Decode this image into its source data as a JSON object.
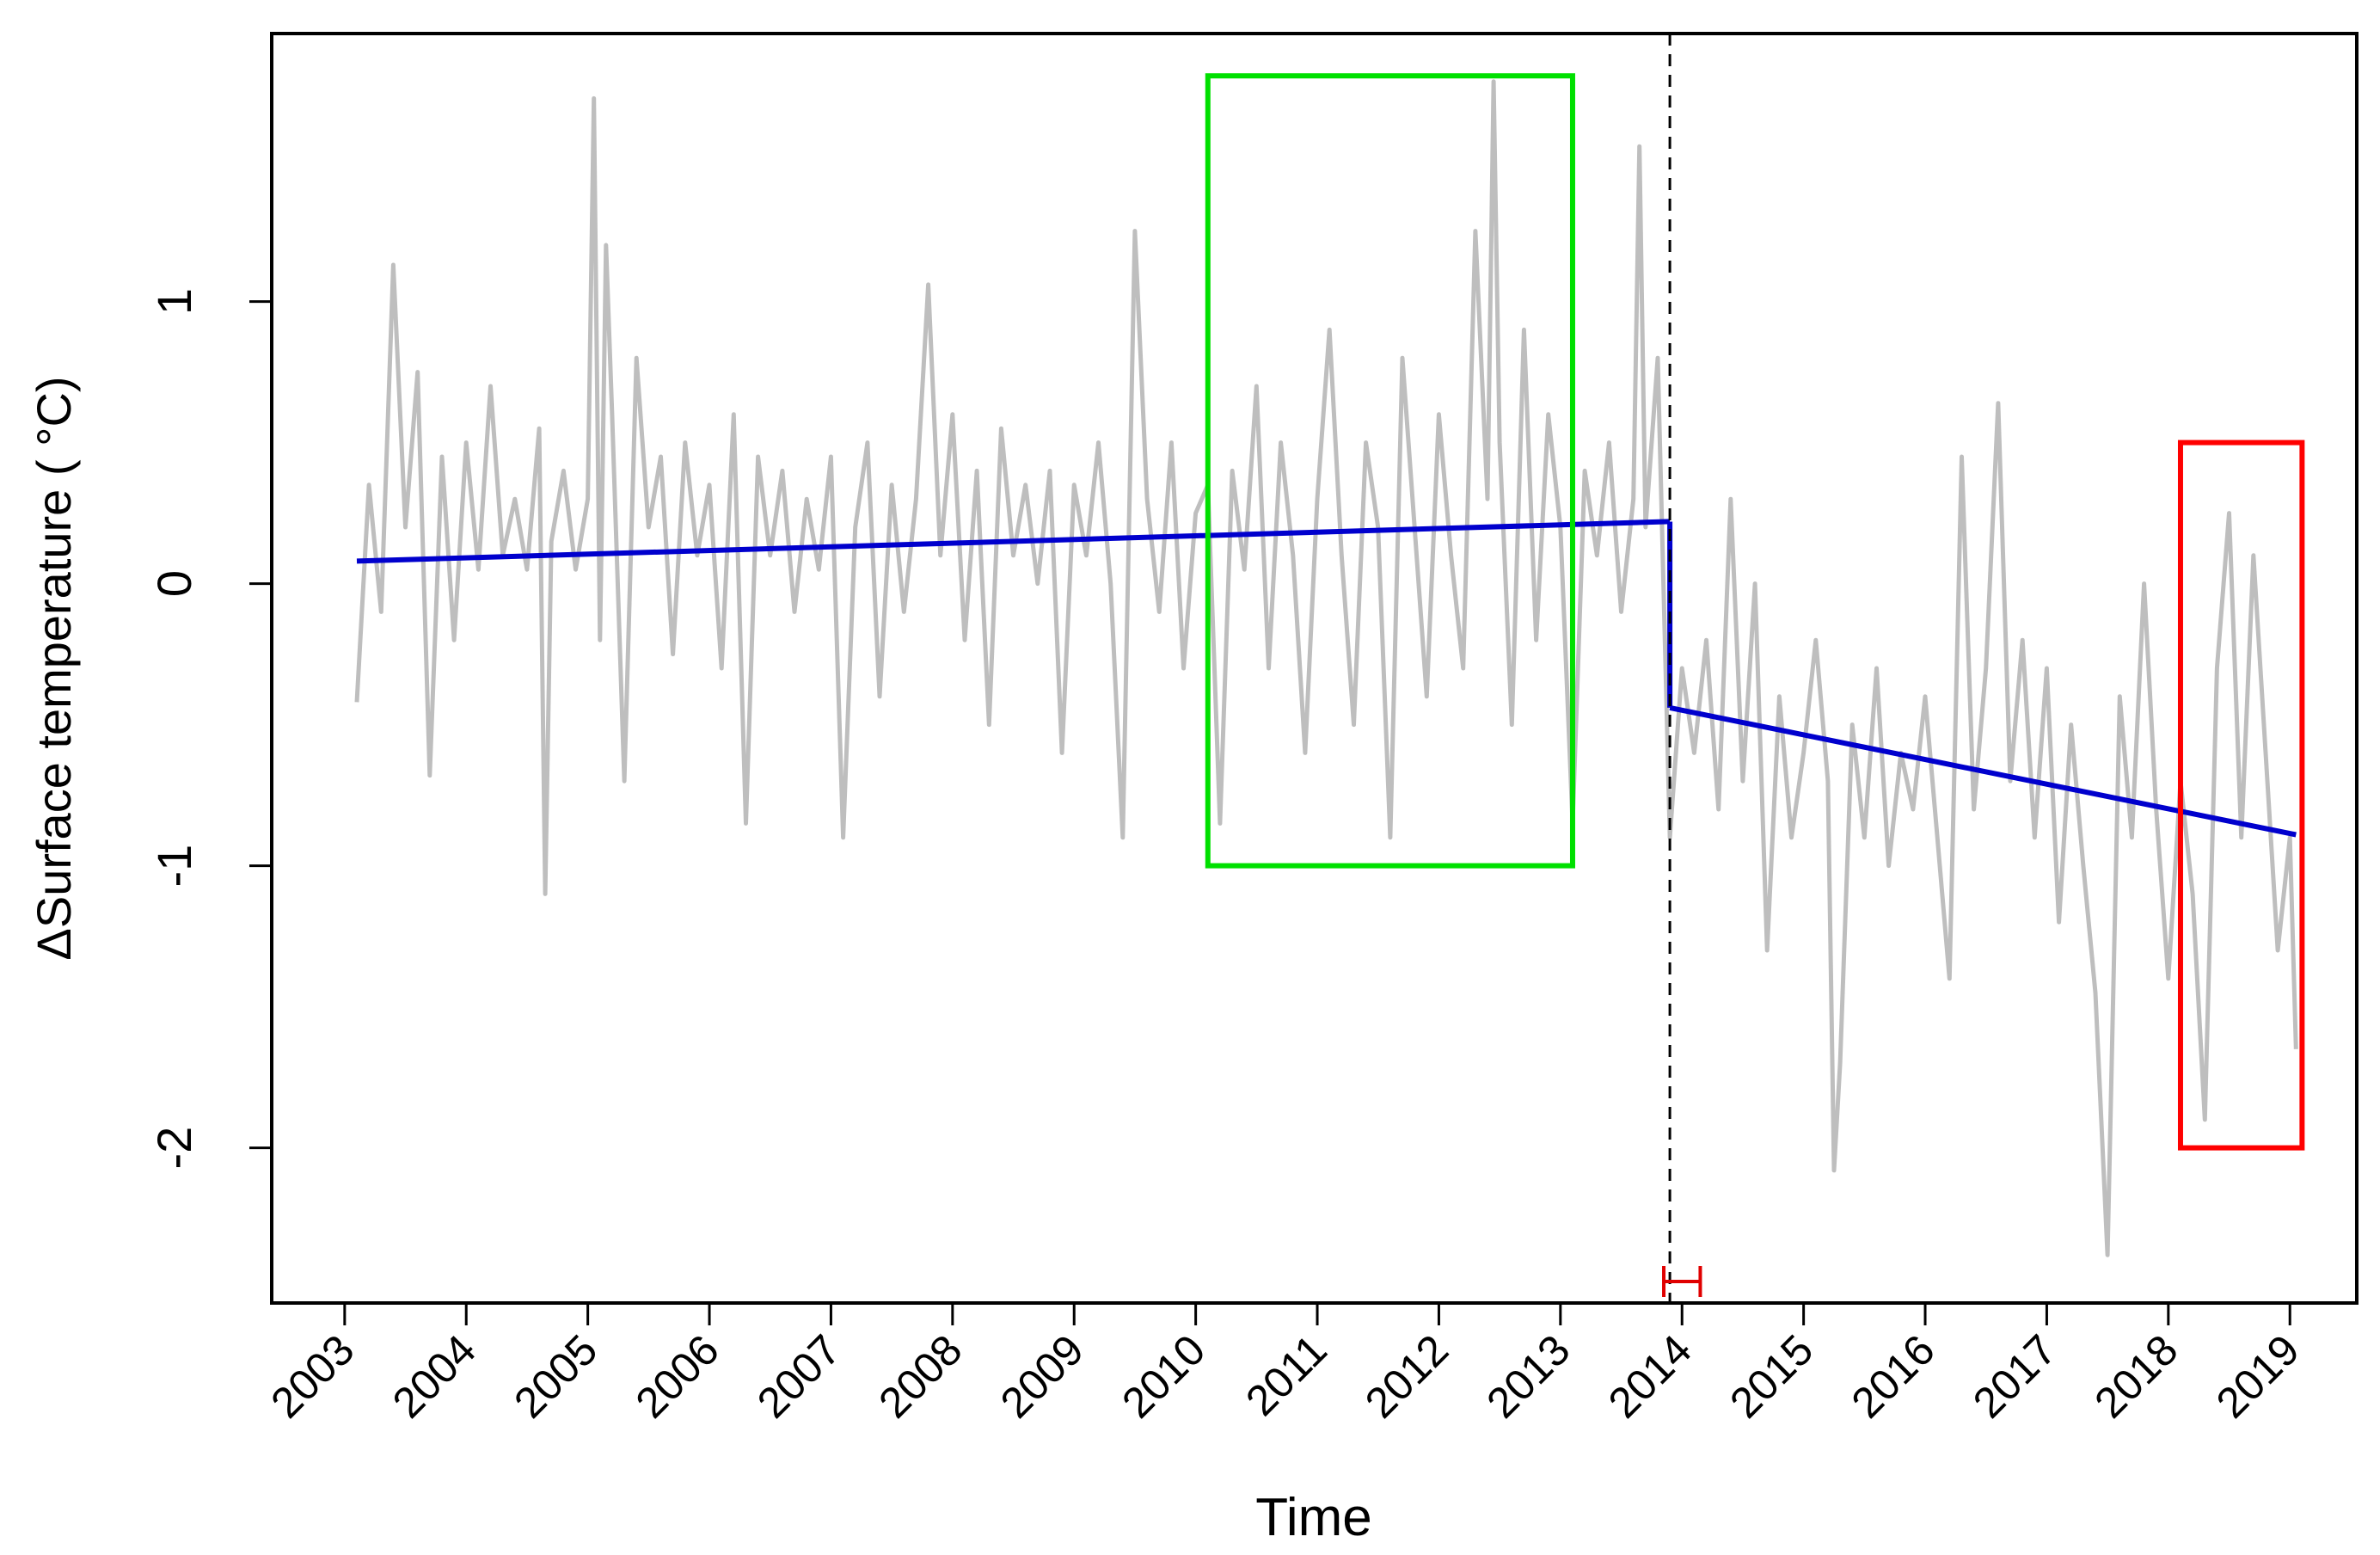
{
  "chart_data": {
    "type": "line",
    "xlabel": "Time",
    "ylabel": "ΔSurface temperature ( °C)",
    "xlim": [
      2002.4,
      2019.55
    ],
    "ylim": [
      -2.55,
      1.95
    ],
    "x_ticks": [
      2003,
      2004,
      2005,
      2006,
      2007,
      2008,
      2009,
      2010,
      2011,
      2012,
      2013,
      2014,
      2015,
      2016,
      2017,
      2018,
      2019
    ],
    "x_tick_labels": [
      "2003",
      "2004",
      "2005",
      "2006",
      "2007",
      "2008",
      "2009",
      "2010",
      "2011",
      "2012",
      "2013",
      "2014",
      "2015",
      "2016",
      "2017",
      "2018",
      "2019"
    ],
    "y_ticks": [
      -2,
      -1,
      0,
      1
    ],
    "y_tick_labels": [
      "-2",
      "-1",
      "0",
      "1"
    ],
    "grid": false,
    "legend": "none",
    "series": [
      {
        "role": "observed_anomaly",
        "color": "#bebebe",
        "x": [
          2003.1,
          2003.2,
          2003.3,
          2003.4,
          2003.5,
          2003.6,
          2003.7,
          2003.8,
          2003.9,
          2004.0,
          2004.1,
          2004.2,
          2004.3,
          2004.4,
          2004.5,
          2004.6,
          2004.65,
          2004.7,
          2004.8,
          2004.9,
          2005.0,
          2005.05,
          2005.1,
          2005.15,
          2005.2,
          2005.3,
          2005.4,
          2005.5,
          2005.6,
          2005.7,
          2005.8,
          2005.9,
          2006.0,
          2006.1,
          2006.2,
          2006.3,
          2006.4,
          2006.5,
          2006.6,
          2006.7,
          2006.8,
          2006.9,
          2007.0,
          2007.1,
          2007.2,
          2007.3,
          2007.4,
          2007.5,
          2007.6,
          2007.7,
          2007.8,
          2007.9,
          2008.0,
          2008.1,
          2008.2,
          2008.3,
          2008.4,
          2008.5,
          2008.6,
          2008.7,
          2008.8,
          2008.9,
          2009.0,
          2009.1,
          2009.2,
          2009.3,
          2009.4,
          2009.5,
          2009.6,
          2009.7,
          2009.8,
          2009.9,
          2010.0,
          2010.1,
          2010.2,
          2010.3,
          2010.4,
          2010.5,
          2010.6,
          2010.7,
          2010.8,
          2010.9,
          2011.0,
          2011.1,
          2011.2,
          2011.3,
          2011.4,
          2011.5,
          2011.6,
          2011.7,
          2011.8,
          2011.9,
          2012.0,
          2012.1,
          2012.2,
          2012.3,
          2012.4,
          2012.45,
          2012.5,
          2012.6,
          2012.7,
          2012.8,
          2012.9,
          2013.0,
          2013.1,
          2013.2,
          2013.3,
          2013.4,
          2013.5,
          2013.6,
          2013.65,
          2013.7,
          2013.8,
          2013.9,
          2014.0,
          2014.1,
          2014.2,
          2014.3,
          2014.4,
          2014.5,
          2014.6,
          2014.7,
          2014.8,
          2014.9,
          2015.0,
          2015.1,
          2015.2,
          2015.25,
          2015.3,
          2015.4,
          2015.5,
          2015.6,
          2015.7,
          2015.8,
          2015.9,
          2016.0,
          2016.1,
          2016.2,
          2016.3,
          2016.4,
          2016.5,
          2016.6,
          2016.7,
          2016.8,
          2016.9,
          2017.0,
          2017.1,
          2017.2,
          2017.3,
          2017.4,
          2017.5,
          2017.6,
          2017.7,
          2017.8,
          2017.9,
          2018.0,
          2018.1,
          2018.2,
          2018.3,
          2018.4,
          2018.5,
          2018.6,
          2018.7,
          2018.8,
          2018.9,
          2019.0,
          2019.05
        ],
        "y": [
          -0.42,
          0.35,
          -0.1,
          1.13,
          0.2,
          0.75,
          -0.68,
          0.45,
          -0.2,
          0.5,
          0.05,
          0.7,
          0.1,
          0.3,
          0.05,
          0.55,
          -1.1,
          0.15,
          0.4,
          0.05,
          0.3,
          1.72,
          -0.2,
          1.2,
          0.6,
          -0.7,
          0.8,
          0.2,
          0.45,
          -0.25,
          0.5,
          0.1,
          0.35,
          -0.3,
          0.6,
          -0.85,
          0.45,
          0.1,
          0.4,
          -0.1,
          0.3,
          0.05,
          0.45,
          -0.9,
          0.2,
          0.5,
          -0.4,
          0.35,
          -0.1,
          0.3,
          1.06,
          0.1,
          0.6,
          -0.2,
          0.4,
          -0.5,
          0.55,
          0.1,
          0.35,
          0.0,
          0.4,
          -0.6,
          0.35,
          0.1,
          0.5,
          0.0,
          -0.9,
          1.25,
          0.3,
          -0.1,
          0.5,
          -0.3,
          0.25,
          0.35,
          -0.85,
          0.4,
          0.05,
          0.7,
          -0.3,
          0.5,
          0.1,
          -0.6,
          0.3,
          0.9,
          0.1,
          -0.5,
          0.5,
          0.2,
          -0.9,
          0.8,
          0.2,
          -0.4,
          0.6,
          0.1,
          -0.3,
          1.25,
          0.3,
          1.78,
          0.5,
          -0.5,
          0.9,
          -0.2,
          0.6,
          0.2,
          -0.85,
          0.4,
          0.1,
          0.5,
          -0.1,
          0.3,
          1.55,
          0.2,
          0.8,
          -0.9,
          -0.3,
          -0.6,
          -0.2,
          -0.8,
          0.3,
          -0.7,
          0.0,
          -1.3,
          -0.4,
          -0.9,
          -0.6,
          -0.2,
          -0.7,
          -2.08,
          -1.7,
          -0.5,
          -0.9,
          -0.3,
          -1.0,
          -0.6,
          -0.8,
          -0.4,
          -0.9,
          -1.4,
          0.45,
          -0.8,
          -0.3,
          0.64,
          -0.7,
          -0.2,
          -0.9,
          -0.3,
          -1.2,
          -0.5,
          -1.0,
          -1.45,
          -2.38,
          -0.4,
          -0.9,
          0.0,
          -0.8,
          -1.4,
          -0.7,
          -1.1,
          -1.9,
          -0.3,
          0.25,
          -0.9,
          0.1,
          -0.6,
          -1.3,
          -0.9,
          -1.65
        ]
      },
      {
        "role": "trend_segment_1",
        "color": "#0000cd",
        "x": [
          2003.1,
          2013.9
        ],
        "y": [
          0.08,
          0.22
        ]
      },
      {
        "role": "trend_segment_2",
        "color": "#0000cd",
        "x": [
          2013.9,
          2019.05
        ],
        "y": [
          -0.44,
          -0.89
        ]
      }
    ],
    "breakpoint": {
      "x": 2013.9,
      "ci": [
        2013.85,
        2014.15
      ],
      "color": "#e00000"
    },
    "highlight_boxes": [
      {
        "role": "green_box",
        "color": "#00e000",
        "x": [
          2010.1,
          2013.1
        ],
        "y": [
          -1.0,
          1.8
        ]
      },
      {
        "role": "red_box",
        "color": "#ff0000",
        "x": [
          2018.1,
          2019.1
        ],
        "y": [
          -2.0,
          0.5
        ]
      }
    ]
  }
}
